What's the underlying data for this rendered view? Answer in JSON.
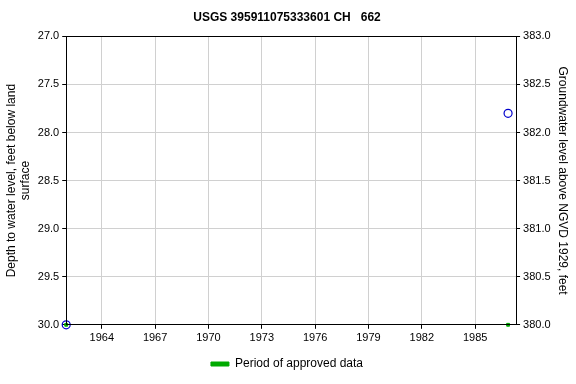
{
  "chart_data": {
    "type": "scatter",
    "title": "USGS 395911075333601 CH   662",
    "x_label": null,
    "y_label": "Depth to water level, feet below land\nsurface",
    "y2_label": "Groundwater level above NGVD 1929, feet",
    "series": [
      {
        "color": "#0000cc",
        "marker": "circle",
        "x": [
          1962.0,
          1986.85
        ],
        "values": [
          30.0,
          27.8
        ]
      },
      {
        "name": "Period of approved data",
        "color": "#00aa00",
        "marker": "square",
        "x": [
          1962.0,
          1986.85
        ],
        "values": [
          30.0,
          30.0
        ]
      }
    ],
    "xlim": [
      1962.0,
      1987.3
    ],
    "xticks": [
      1964,
      1967,
      1970,
      1973,
      1976,
      1979,
      1982,
      1985
    ],
    "ylim": [
      27.0,
      30.0
    ],
    "yticks": [
      {
        "value": 27,
        "label": "27.0"
      },
      {
        "value": 27.5,
        "label": "27.5"
      },
      {
        "value": 28,
        "label": "28.0"
      },
      {
        "value": 28.5,
        "label": "28.5"
      },
      {
        "value": 29,
        "label": "29.0"
      },
      {
        "value": 29.5,
        "label": "29.5"
      },
      {
        "value": 30,
        "label": "30.0"
      }
    ],
    "y2lim": [
      380.0,
      383.0
    ],
    "y2ticks": [
      {
        "value": 380,
        "label": "380.0"
      },
      {
        "value": 380.5,
        "label": "380.5"
      },
      {
        "value": 381,
        "label": "381.0"
      },
      {
        "value": 381.5,
        "label": "381.5"
      },
      {
        "value": 382,
        "label": "382.0"
      },
      {
        "value": 382.5,
        "label": "382.5"
      },
      {
        "value": 383,
        "label": "383.0"
      }
    ],
    "grid": true,
    "legend": "bottom"
  }
}
